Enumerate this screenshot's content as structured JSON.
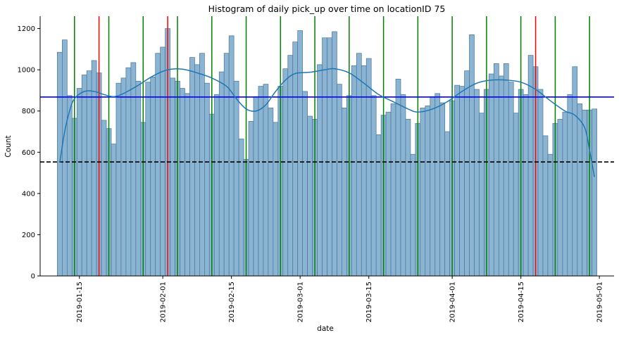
{
  "chart_data": {
    "type": "bar",
    "title": "Histogram of daily pick_up over time on locationID 75",
    "xlabel": "date",
    "ylabel": "Count",
    "ylim": [
      0,
      1260
    ],
    "xlim": [
      "2019-01-07",
      "2019-05-04"
    ],
    "x_ticks": [
      "2019-01-15",
      "2019-02-01",
      "2019-02-15",
      "2019-03-01",
      "2019-03-15",
      "2019-04-01",
      "2019-04-15",
      "2019-05-01"
    ],
    "y_ticks": [
      0,
      200,
      400,
      600,
      800,
      1000,
      1200
    ],
    "grid": false,
    "bar_color": "#8ab4d2",
    "bar_edge_color": "#4a7596",
    "kde_color": "#1f77b4",
    "dates": [
      "2019-01-11",
      "2019-01-12",
      "2019-01-13",
      "2019-01-14",
      "2019-01-15",
      "2019-01-16",
      "2019-01-17",
      "2019-01-18",
      "2019-01-19",
      "2019-01-20",
      "2019-01-21",
      "2019-01-22",
      "2019-01-23",
      "2019-01-24",
      "2019-01-25",
      "2019-01-26",
      "2019-01-27",
      "2019-01-28",
      "2019-01-29",
      "2019-01-30",
      "2019-01-31",
      "2019-02-01",
      "2019-02-02",
      "2019-02-03",
      "2019-02-04",
      "2019-02-05",
      "2019-02-06",
      "2019-02-07",
      "2019-02-08",
      "2019-02-09",
      "2019-02-10",
      "2019-02-11",
      "2019-02-12",
      "2019-02-13",
      "2019-02-14",
      "2019-02-15",
      "2019-02-16",
      "2019-02-17",
      "2019-02-18",
      "2019-02-19",
      "2019-02-20",
      "2019-02-21",
      "2019-02-22",
      "2019-02-23",
      "2019-02-24",
      "2019-02-25",
      "2019-02-26",
      "2019-02-27",
      "2019-02-28",
      "2019-03-01",
      "2019-03-02",
      "2019-03-03",
      "2019-03-04",
      "2019-03-05",
      "2019-03-06",
      "2019-03-07",
      "2019-03-08",
      "2019-03-09",
      "2019-03-10",
      "2019-03-11",
      "2019-03-12",
      "2019-03-13",
      "2019-03-14",
      "2019-03-15",
      "2019-03-16",
      "2019-03-17",
      "2019-03-18",
      "2019-03-19",
      "2019-03-20",
      "2019-03-21",
      "2019-03-22",
      "2019-03-23",
      "2019-03-24",
      "2019-03-25",
      "2019-03-26",
      "2019-03-27",
      "2019-03-28",
      "2019-03-29",
      "2019-03-30",
      "2019-03-31",
      "2019-04-01",
      "2019-04-02",
      "2019-04-03",
      "2019-04-04",
      "2019-04-05",
      "2019-04-06",
      "2019-04-07",
      "2019-04-08",
      "2019-04-09",
      "2019-04-10",
      "2019-04-11",
      "2019-04-12",
      "2019-04-13",
      "2019-04-14",
      "2019-04-15",
      "2019-04-16",
      "2019-04-17",
      "2019-04-18",
      "2019-04-19",
      "2019-04-20",
      "2019-04-21",
      "2019-04-22",
      "2019-04-23",
      "2019-04-24",
      "2019-04-25",
      "2019-04-26",
      "2019-04-27",
      "2019-04-28",
      "2019-04-29",
      "2019-04-30"
    ],
    "values": [
      1085,
      1145,
      875,
      765,
      910,
      975,
      995,
      1045,
      985,
      755,
      715,
      640,
      935,
      960,
      1010,
      1035,
      945,
      745,
      940,
      965,
      1080,
      1110,
      1200,
      960,
      945,
      910,
      885,
      1060,
      1025,
      1080,
      935,
      785,
      880,
      990,
      1080,
      1165,
      945,
      665,
      565,
      750,
      870,
      920,
      930,
      815,
      745,
      920,
      1005,
      1070,
      1135,
      1190,
      895,
      775,
      760,
      1025,
      1155,
      1155,
      1185,
      930,
      815,
      875,
      1020,
      1080,
      1020,
      1055,
      875,
      685,
      780,
      795,
      835,
      955,
      880,
      760,
      590,
      740,
      815,
      825,
      870,
      885,
      840,
      700,
      850,
      925,
      920,
      995,
      1170,
      905,
      790,
      905,
      980,
      1030,
      970,
      1030,
      940,
      790,
      905,
      880,
      1070,
      1015,
      905,
      680,
      590,
      740,
      760,
      795,
      880,
      1015,
      835,
      805,
      805,
      810
    ],
    "kde": [
      [
        "2019-01-11",
        550
      ],
      [
        "2019-01-12",
        700
      ],
      [
        "2019-01-13",
        800
      ],
      [
        "2019-01-14",
        860
      ],
      [
        "2019-01-16",
        895
      ],
      [
        "2019-01-18",
        895
      ],
      [
        "2019-01-20",
        880
      ],
      [
        "2019-01-22",
        870
      ],
      [
        "2019-01-24",
        885
      ],
      [
        "2019-01-27",
        925
      ],
      [
        "2019-01-30",
        970
      ],
      [
        "2019-02-02",
        1000
      ],
      [
        "2019-02-05",
        1003
      ],
      [
        "2019-02-08",
        985
      ],
      [
        "2019-02-11",
        960
      ],
      [
        "2019-02-14",
        920
      ],
      [
        "2019-02-16",
        860
      ],
      [
        "2019-02-18",
        810
      ],
      [
        "2019-02-20",
        800
      ],
      [
        "2019-02-22",
        830
      ],
      [
        "2019-02-24",
        895
      ],
      [
        "2019-02-26",
        950
      ],
      [
        "2019-02-28",
        982
      ],
      [
        "2019-03-03",
        988
      ],
      [
        "2019-03-06",
        1000
      ],
      [
        "2019-03-08",
        1005
      ],
      [
        "2019-03-11",
        985
      ],
      [
        "2019-03-14",
        935
      ],
      [
        "2019-03-17",
        880
      ],
      [
        "2019-03-20",
        845
      ],
      [
        "2019-03-23",
        810
      ],
      [
        "2019-03-25",
        795
      ],
      [
        "2019-03-28",
        810
      ],
      [
        "2019-03-31",
        845
      ],
      [
        "2019-04-03",
        895
      ],
      [
        "2019-04-06",
        935
      ],
      [
        "2019-04-09",
        950
      ],
      [
        "2019-04-12",
        950
      ],
      [
        "2019-04-15",
        940
      ],
      [
        "2019-04-18",
        905
      ],
      [
        "2019-04-21",
        850
      ],
      [
        "2019-04-24",
        800
      ],
      [
        "2019-04-26",
        780
      ],
      [
        "2019-04-28",
        720
      ],
      [
        "2019-04-29",
        610
      ],
      [
        "2019-04-30",
        480
      ]
    ],
    "reference_lines": [
      {
        "value": 868,
        "color": "#0000ff",
        "style": "solid"
      },
      {
        "value": 553,
        "color": "#000000",
        "style": "dashed"
      }
    ],
    "vertical_lines": [
      {
        "date": "2019-01-14",
        "color": "#008000"
      },
      {
        "date": "2019-01-19",
        "color": "#ff0000"
      },
      {
        "date": "2019-01-21",
        "color": "#008000"
      },
      {
        "date": "2019-01-28",
        "color": "#008000"
      },
      {
        "date": "2019-02-02",
        "color": "#ff0000"
      },
      {
        "date": "2019-02-04",
        "color": "#008000"
      },
      {
        "date": "2019-02-11",
        "color": "#008000"
      },
      {
        "date": "2019-02-18",
        "color": "#008000"
      },
      {
        "date": "2019-02-25",
        "color": "#008000"
      },
      {
        "date": "2019-03-04",
        "color": "#008000"
      },
      {
        "date": "2019-03-11",
        "color": "#008000"
      },
      {
        "date": "2019-03-18",
        "color": "#008000"
      },
      {
        "date": "2019-03-25",
        "color": "#008000"
      },
      {
        "date": "2019-04-01",
        "color": "#008000"
      },
      {
        "date": "2019-04-08",
        "color": "#008000"
      },
      {
        "date": "2019-04-15",
        "color": "#008000"
      },
      {
        "date": "2019-04-18",
        "color": "#ff0000"
      },
      {
        "date": "2019-04-22",
        "color": "#008000"
      },
      {
        "date": "2019-04-29",
        "color": "#008000"
      }
    ]
  }
}
